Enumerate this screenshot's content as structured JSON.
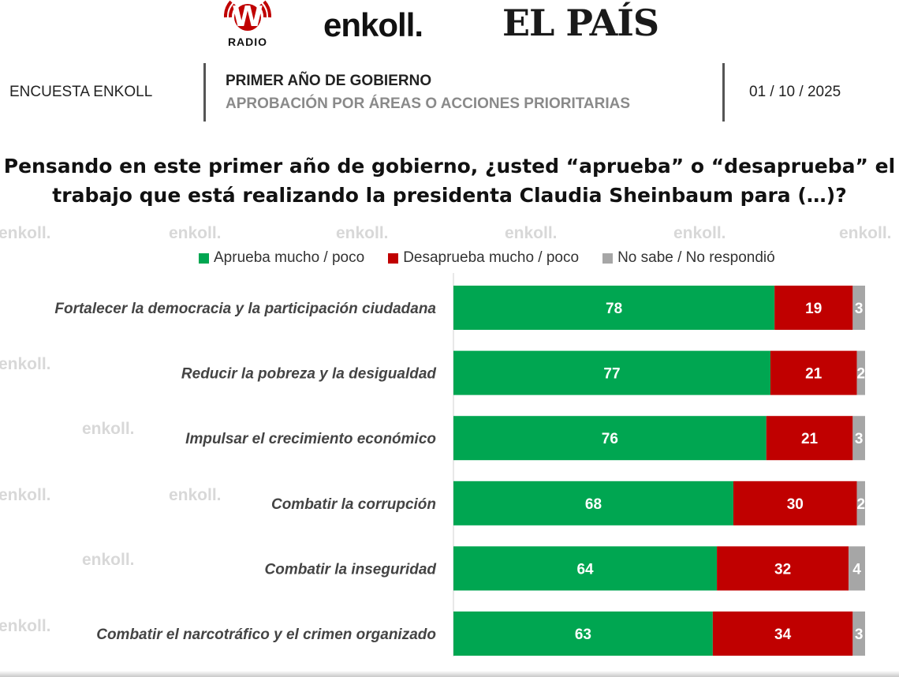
{
  "logos": {
    "radio_letter": "W",
    "radio_name": "RADIO",
    "enkoll": "enkoll.",
    "elpais": "EL PAÍS"
  },
  "header": {
    "left": "ENCUESTA ENKOLL",
    "title": "PRIMER AÑO DE GOBIERNO",
    "subtitle": "APROBACIÓN POR ÁREAS O ACCIONES PRIORITARIAS",
    "date": "01 / 10 / 2025"
  },
  "watermark": "enkoll.",
  "chart_data": {
    "type": "bar",
    "stacked": true,
    "orientation": "horizontal",
    "title": "Pensando en este primer año de gobierno, ¿usted “aprueba” o “desaprueba” el trabajo que está realizando la presidenta Claudia Sheinbaum para (…)?",
    "categories": [
      "Fortalecer la democracia y la participación ciudadana",
      "Reducir la  pobreza y la desigualdad",
      "Impulsar el crecimiento económico",
      "Combatir la corrupción",
      "Combatir la inseguridad",
      "Combatir el narcotráfico y el crimen organizado"
    ],
    "series": [
      {
        "name": "Aprueba mucho / poco",
        "color": "#00a651",
        "values": [
          78,
          77,
          76,
          68,
          64,
          63
        ]
      },
      {
        "name": "Desaprueba mucho / poco",
        "color": "#c00000",
        "values": [
          19,
          21,
          21,
          30,
          32,
          34
        ]
      },
      {
        "name": "No sabe / No respondió",
        "color": "#a6a6a6",
        "values": [
          3,
          2,
          3,
          2,
          4,
          3
        ]
      }
    ],
    "xlim": [
      0,
      100
    ],
    "legend": "top"
  }
}
